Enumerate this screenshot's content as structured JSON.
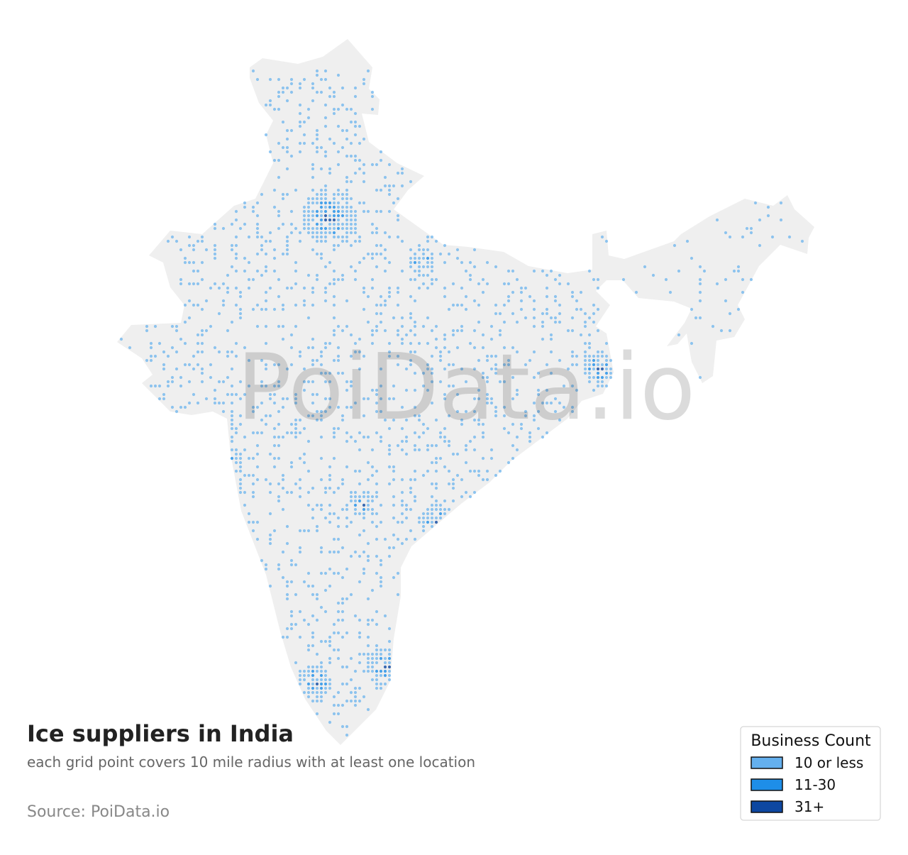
{
  "title": "Ice suppliers in India",
  "subtitle": "each grid point covers 10 mile radius with at least one location",
  "source": "Source: PoiData.io",
  "watermark": "PoiData.io",
  "legend": {
    "title": "Business Count",
    "items": [
      {
        "label": "10 or less",
        "color": "#64b0ee"
      },
      {
        "label": "11-30",
        "color": "#1e8ee8"
      },
      {
        "label": "31+",
        "color": "#0d47a1"
      }
    ]
  }
}
